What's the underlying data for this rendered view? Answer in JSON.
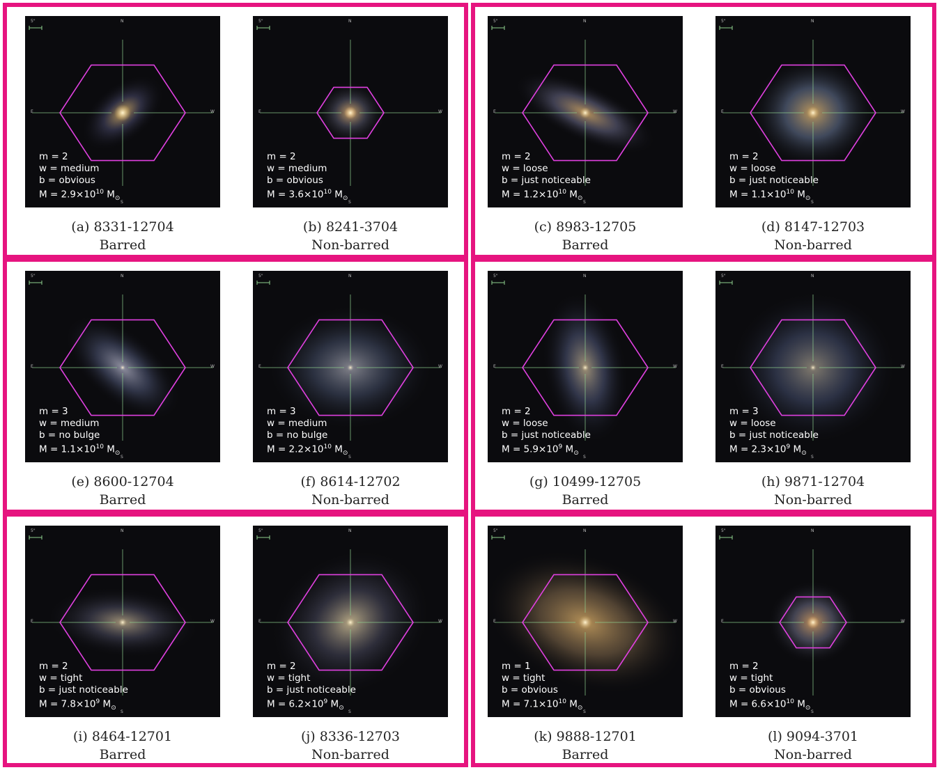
{
  "colors": {
    "frame": "#e6147f",
    "hexagon": "#e040e0",
    "crosshair": "#8fd08f"
  },
  "panels": [
    {
      "id": "a",
      "caption": "(a) 8331-12704",
      "class": "Barred",
      "m": "m = 2",
      "w": "w = medium",
      "b": "b = obvious",
      "M": {
        "mant": "M = 2.9×10",
        "exp": "10",
        "unit": " M",
        "sub": "⊙"
      }
    },
    {
      "id": "b",
      "caption": "(b) 8241-3704",
      "class": "Non-barred",
      "m": "m = 2",
      "w": "w = medium",
      "b": "b = obvious",
      "M": {
        "mant": "M = 3.6×10",
        "exp": "10",
        "unit": " M",
        "sub": "⊙"
      }
    },
    {
      "id": "c",
      "caption": "(c) 8983-12705",
      "class": "Barred",
      "m": "m = 2",
      "w": "w = loose",
      "b": "b = just noticeable",
      "M": {
        "mant": "M = 1.2×10",
        "exp": "10",
        "unit": " M",
        "sub": "⊙"
      }
    },
    {
      "id": "d",
      "caption": "(d) 8147-12703",
      "class": "Non-barred",
      "m": "m = 2",
      "w": "w = loose",
      "b": "b = just noticeable",
      "M": {
        "mant": "M = 1.1×10",
        "exp": "10",
        "unit": " M",
        "sub": "⊙"
      }
    },
    {
      "id": "e",
      "caption": "(e) 8600-12704",
      "class": "Barred",
      "m": "m = 3",
      "w": "w = medium",
      "b": "b = no bulge",
      "M": {
        "mant": "M = 1.1×10",
        "exp": "10",
        "unit": " M",
        "sub": "⊙"
      }
    },
    {
      "id": "f",
      "caption": "(f) 8614-12702",
      "class": "Non-barred",
      "m": "m = 3",
      "w": "w = medium",
      "b": "b = no bulge",
      "M": {
        "mant": "M = 2.2×10",
        "exp": "10",
        "unit": " M",
        "sub": "⊙"
      }
    },
    {
      "id": "g",
      "caption": "(g) 10499-12705",
      "class": "Barred",
      "m": "m = 2",
      "w": "w = loose",
      "b": "b = just noticeable",
      "M": {
        "mant": "M = 5.9×10",
        "exp": "9",
        "unit": " M",
        "sub": "⊙"
      }
    },
    {
      "id": "h",
      "caption": "(h) 9871-12704",
      "class": "Non-barred",
      "m": "m = 3",
      "w": "w = loose",
      "b": "b = just noticeable",
      "M": {
        "mant": "M = 2.3×10",
        "exp": "9",
        "unit": " M",
        "sub": "⊙"
      }
    },
    {
      "id": "i",
      "caption": "(i) 8464-12701",
      "class": "Barred",
      "m": "m = 2",
      "w": "w = tight",
      "b": "b = just noticeable",
      "M": {
        "mant": "M = 7.8×10",
        "exp": "9",
        "unit": " M",
        "sub": "⊙"
      }
    },
    {
      "id": "j",
      "caption": "(j) 8336-12703",
      "class": "Non-barred",
      "m": "m = 2",
      "w": "w = tight",
      "b": "b = just noticeable",
      "M": {
        "mant": "M = 6.2×10",
        "exp": "9",
        "unit": " M",
        "sub": "⊙"
      }
    },
    {
      "id": "k",
      "caption": "(k) 9888-12701",
      "class": "Barred",
      "m": "m = 1",
      "w": "w = tight",
      "b": "b = obvious",
      "M": {
        "mant": "M = 7.1×10",
        "exp": "10",
        "unit": " M",
        "sub": "⊙"
      }
    },
    {
      "id": "l",
      "caption": "(l) 9094-3701",
      "class": "Non-barred",
      "m": "m = 2",
      "w": "w = tight",
      "b": "b = obvious",
      "M": {
        "mant": "M = 6.6×10",
        "exp": "10",
        "unit": " M",
        "sub": "⊙"
      }
    }
  ],
  "compass": {
    "n": "N",
    "s": "S",
    "e": "E",
    "w": "W",
    "scale": "5\""
  }
}
